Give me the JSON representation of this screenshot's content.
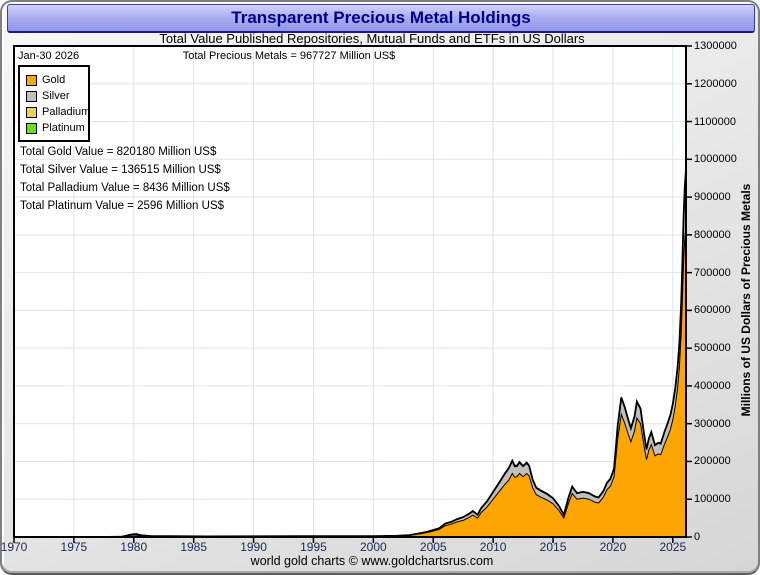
{
  "window": {
    "title": "Transparent Precious Metal Holdings",
    "subtitle": "Total Value Published Repositories, Mutual Funds and ETFs in US Dollars",
    "footer": "world gold charts © www.goldchartsrus.com"
  },
  "annotations": {
    "date_label": "Jan-30  2026",
    "total_label": "Total Precious Metals = 967727 Million US$",
    "totals": [
      "Total Gold Value = 820180 Million US$",
      "Total Silver Value = 136515 Million US$",
      "Total Palladium Value = 8436 Million US$",
      "Total Platinum Value = 2596 Million US$"
    ]
  },
  "colors": {
    "title_text": "#00008b",
    "titlebar_top": "#d1d3f8",
    "titlebar_bottom": "#9096e6",
    "gridline": "#d9e2f2"
  },
  "chart_data": {
    "type": "area",
    "stacked": true,
    "title": "Transparent Precious Metal Holdings",
    "subtitle": "Total Value Published Repositories, Mutual Funds and ETFs in US Dollars",
    "xlabel": "",
    "ylabel": "Millions of US Dollars of Precious Metals",
    "units": "Million US$",
    "as_of_date": "Jan-30 2026",
    "total_final_value": 967727,
    "xlim": [
      1970,
      2026.1
    ],
    "ylim": [
      0,
      1300000
    ],
    "x_ticks": [
      1970,
      1975,
      1980,
      1985,
      1990,
      1995,
      2000,
      2005,
      2010,
      2015,
      2020,
      2025
    ],
    "y_ticks": [
      0,
      100000,
      200000,
      300000,
      400000,
      500000,
      600000,
      700000,
      800000,
      900000,
      1000000,
      1100000,
      1200000,
      1300000
    ],
    "grid": true,
    "gridline_color": "#d9e2f2",
    "outline_color": "#000000",
    "legend_position": "top-left",
    "x": [
      1970,
      1978,
      1979,
      1979.8,
      1980.2,
      1980.6,
      1981.5,
      1983,
      1986,
      1990,
      1994,
      1997,
      2000,
      2002,
      2003,
      2004,
      2004.5,
      2005,
      2005.5,
      2006,
      2006.5,
      2007,
      2007.5,
      2008,
      2008.3,
      2008.7,
      2009,
      2009.5,
      2010,
      2010.5,
      2011,
      2011.3,
      2011.6,
      2011.8,
      2012,
      2012.2,
      2012.5,
      2012.8,
      2013,
      2013.3,
      2013.6,
      2014,
      2014.5,
      2015,
      2015.5,
      2015.9,
      2016.3,
      2016.6,
      2017,
      2017.5,
      2018,
      2018.5,
      2018.8,
      2019.2,
      2019.5,
      2019.8,
      2020.1,
      2020.4,
      2020.7,
      2021,
      2021.3,
      2021.5,
      2021.8,
      2022,
      2022.3,
      2022.6,
      2022.8,
      2023,
      2023.2,
      2023.5,
      2023.8,
      2024,
      2024.3,
      2024.6,
      2024.8,
      2025,
      2025.2,
      2025.4,
      2025.55,
      2025.7,
      2025.8,
      2025.9,
      2026,
      2026.08
    ],
    "series": [
      {
        "name": "Gold",
        "color": "#FCA503",
        "final_value": 820180,
        "values": [
          0,
          200,
          600,
          2500,
          3000,
          2000,
          1200,
          1500,
          1200,
          1400,
          1500,
          1800,
          1500,
          2500,
          4000,
          9000,
          12000,
          16000,
          20000,
          30000,
          34000,
          40000,
          44000,
          52000,
          58000,
          50000,
          65000,
          80000,
          100000,
          120000,
          140000,
          150000,
          168000,
          158000,
          160000,
          168000,
          160000,
          168000,
          162000,
          130000,
          112000,
          105000,
          98000,
          88000,
          70000,
          50000,
          90000,
          115000,
          100000,
          103000,
          100000,
          92000,
          90000,
          105000,
          125000,
          135000,
          160000,
          260000,
          325000,
          300000,
          270000,
          252000,
          280000,
          315000,
          300000,
          240000,
          205000,
          230000,
          245000,
          215000,
          220000,
          218000,
          245000,
          268000,
          285000,
          310000,
          345000,
          395000,
          450000,
          540000,
          630000,
          730000,
          790000,
          820180
        ]
      },
      {
        "name": "Silver",
        "color": "#BFBFBF",
        "final_value": 136515,
        "values": [
          0,
          100,
          400,
          4000,
          5000,
          2500,
          900,
          700,
          500,
          500,
          500,
          600,
          500,
          700,
          1000,
          1500,
          2000,
          2500,
          3000,
          5000,
          5500,
          7000,
          8000,
          9000,
          10000,
          8500,
          11000,
          14000,
          18000,
          22000,
          27000,
          30000,
          32000,
          28000,
          27000,
          28000,
          26000,
          27000,
          25000,
          20000,
          17000,
          16000,
          15000,
          13500,
          11000,
          8000,
          14000,
          17000,
          15000,
          15500,
          15000,
          14000,
          13500,
          15000,
          17000,
          18000,
          20000,
          33000,
          42000,
          40000,
          36000,
          34000,
          37000,
          41000,
          38000,
          30000,
          26000,
          29000,
          31000,
          27000,
          28000,
          28000,
          31000,
          34000,
          36000,
          40000,
          45000,
          52000,
          60000,
          75000,
          92000,
          110000,
          128000,
          136515
        ]
      },
      {
        "name": "Palladium",
        "color": "#E9D44F",
        "final_value": 8436,
        "values": [
          0,
          0,
          0,
          0,
          0,
          0,
          0,
          0,
          0,
          0,
          0,
          0,
          0,
          0,
          0,
          0,
          0,
          0,
          100,
          200,
          200,
          300,
          400,
          500,
          500,
          400,
          500,
          700,
          900,
          1100,
          1300,
          1400,
          1500,
          1400,
          1400,
          1400,
          1300,
          1300,
          1200,
          1000,
          900,
          900,
          850,
          800,
          700,
          500,
          800,
          900,
          800,
          800,
          800,
          750,
          750,
          800,
          900,
          950,
          1000,
          1500,
          1800,
          1700,
          1500,
          1400,
          1500,
          1600,
          1500,
          1200,
          1100,
          1200,
          1300,
          1100,
          1100,
          1100,
          1200,
          1300,
          1400,
          1500,
          1700,
          2000,
          2500,
          3500,
          4500,
          6000,
          7500,
          8436
        ]
      },
      {
        "name": "Platinum",
        "color": "#6BE015",
        "final_value": 2596,
        "values": [
          0,
          0,
          0,
          0,
          0,
          0,
          0,
          0,
          0,
          0,
          0,
          0,
          0,
          0,
          0,
          0,
          0,
          0,
          100,
          150,
          150,
          200,
          250,
          300,
          300,
          250,
          350,
          450,
          600,
          700,
          800,
          900,
          900,
          850,
          850,
          850,
          800,
          800,
          750,
          650,
          600,
          600,
          550,
          500,
          450,
          350,
          500,
          550,
          500,
          500,
          500,
          480,
          480,
          500,
          550,
          600,
          650,
          800,
          900,
          850,
          800,
          750,
          800,
          850,
          800,
          700,
          650,
          700,
          700,
          650,
          650,
          650,
          700,
          750,
          800,
          850,
          950,
          1100,
          1300,
          1600,
          1900,
          2200,
          2450,
          2596
        ]
      }
    ]
  }
}
